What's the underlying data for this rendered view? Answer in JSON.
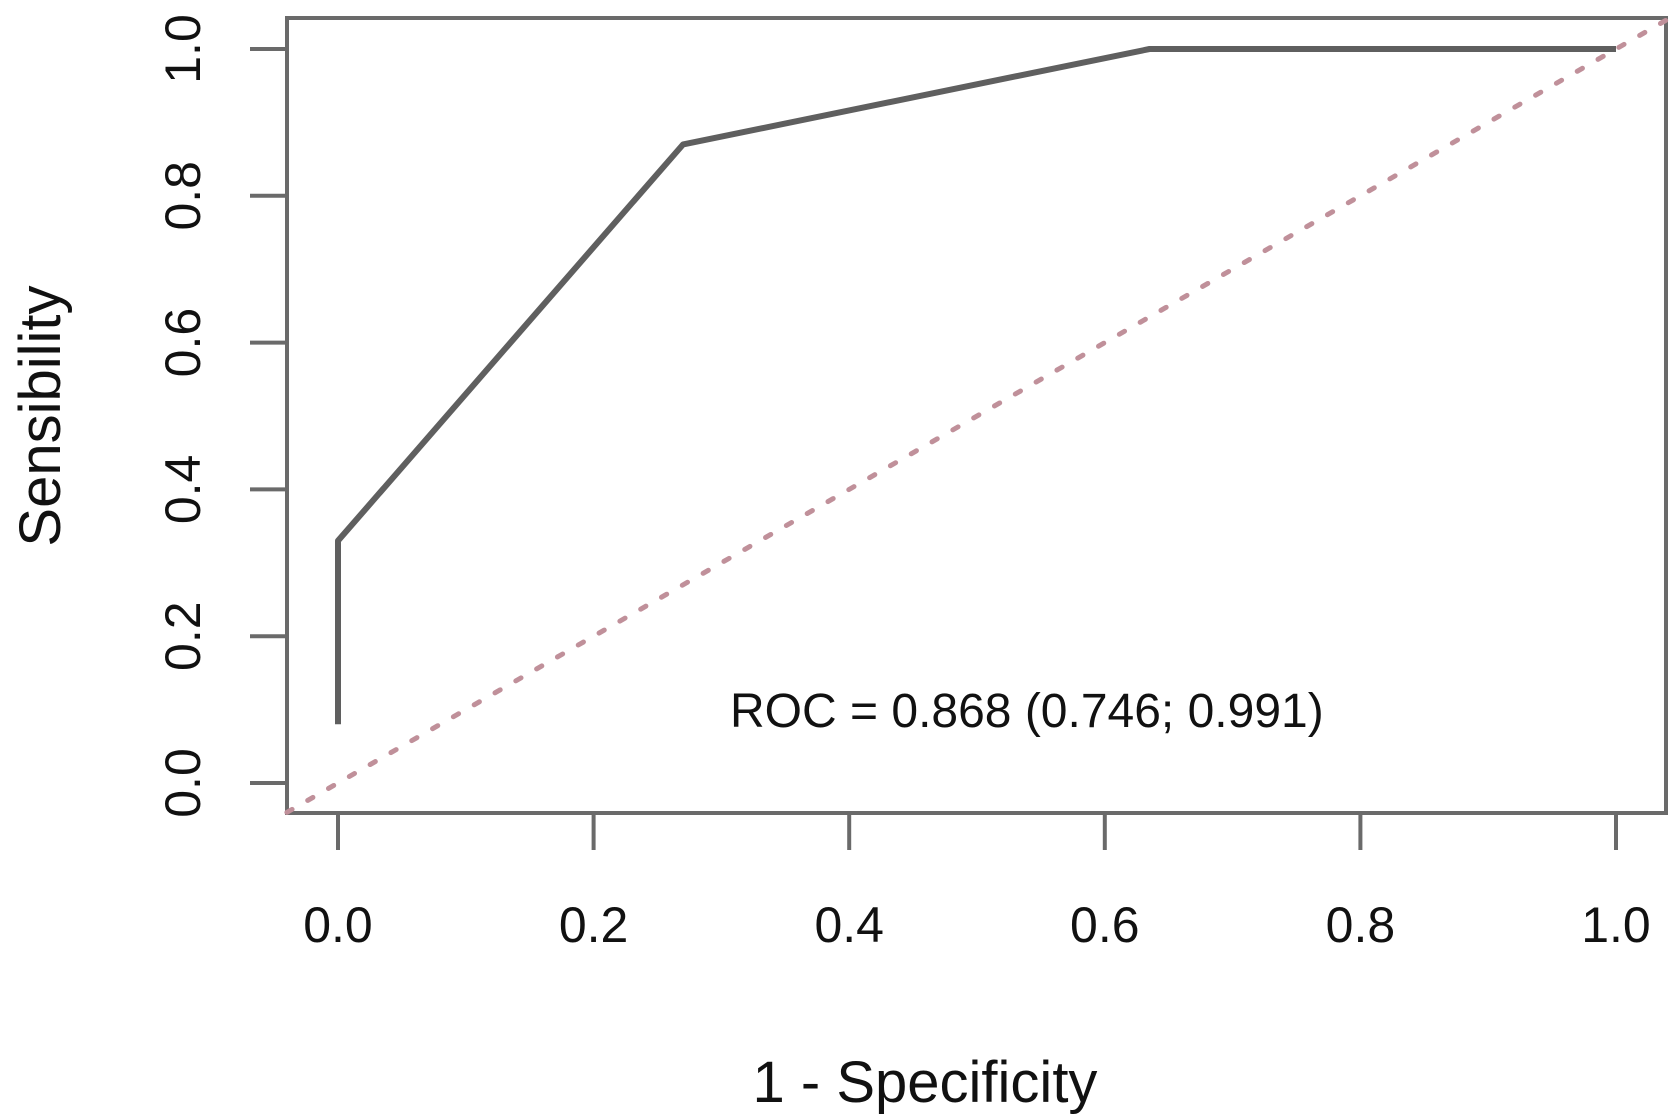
{
  "chart_data": {
    "type": "line",
    "title": "",
    "xlabel": "1 - Specificity",
    "ylabel": "Sensibility",
    "xlim": [
      -0.04,
      1.04
    ],
    "ylim": [
      -0.04,
      1.04
    ],
    "xticks": [
      "0.0",
      "0.2",
      "0.4",
      "0.6",
      "0.8",
      "1.0"
    ],
    "yticks": [
      "0.0",
      "0.2",
      "0.4",
      "0.6",
      "0.8",
      "1.0"
    ],
    "grid": false,
    "series": [
      {
        "x": [
          0.0,
          0.0,
          0.27,
          0.635,
          1.0
        ],
        "y": [
          0.08,
          0.33,
          0.87,
          1.0,
          1.0
        ],
        "color": "#5f5f5f",
        "style": "solid"
      },
      {
        "x": [
          -0.04,
          1.04
        ],
        "y": [
          -0.04,
          1.04
        ],
        "color": "#c0909a",
        "style": "dotted"
      }
    ],
    "annotation": "ROC = 0.868 (0.746; 0.991)"
  }
}
